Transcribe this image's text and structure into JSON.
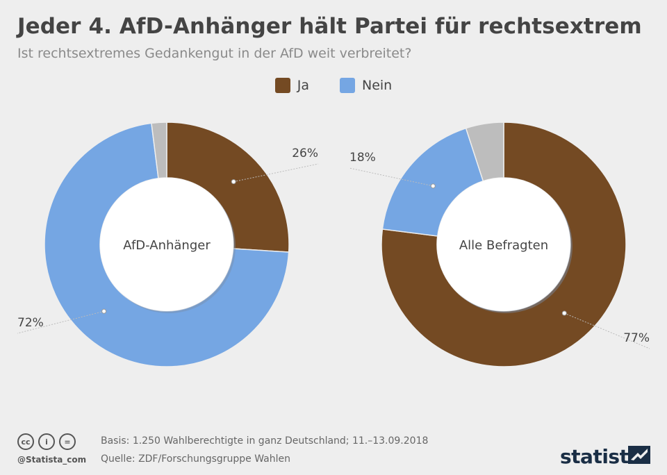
{
  "header": {
    "title": "Jeder 4. AfD-Anhänger hält Partei für rechtsextrem",
    "subtitle": "Ist rechtsextremes Gedankengut in der AfD weit verbreitet?"
  },
  "legend": [
    {
      "label": "Ja",
      "color": "#744a23"
    },
    {
      "label": "Nein",
      "color": "#75a6e3"
    }
  ],
  "chart_data": [
    {
      "type": "pie",
      "center_label": "AfD-Anhänger",
      "slices": [
        {
          "name": "Ja",
          "value": 26,
          "label": "26%",
          "color": "#744a23"
        },
        {
          "name": "Nein",
          "value": 72,
          "label": "72%",
          "color": "#75a6e3"
        },
        {
          "name": "",
          "value": 2,
          "label": "",
          "color": "#bdbdbd"
        }
      ]
    },
    {
      "type": "pie",
      "center_label": "Alle Befragten",
      "slices": [
        {
          "name": "Ja",
          "value": 77,
          "label": "77%",
          "color": "#744a23"
        },
        {
          "name": "Nein",
          "value": 18,
          "label": "18%",
          "color": "#75a6e3"
        },
        {
          "name": "",
          "value": 5,
          "label": "",
          "color": "#bdbdbd"
        }
      ]
    }
  ],
  "footer": {
    "basis": "Basis: 1.250 Wahlberechtigte in ganz Deutschland; 11.–13.09.2018",
    "source": "Quelle: ZDF/Forschungsgruppe Wahlen",
    "handle": "@Statista_com",
    "brand": "statista",
    "cc_icons": [
      {
        "icon": "cc-icon",
        "text": "cc"
      },
      {
        "icon": "by-icon",
        "text": "i"
      },
      {
        "icon": "nd-icon",
        "text": "="
      }
    ]
  }
}
